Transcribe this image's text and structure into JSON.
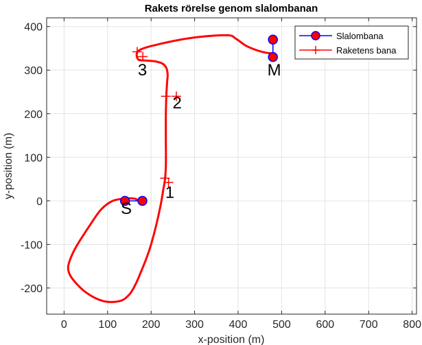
{
  "chart_data": {
    "type": "line",
    "title": "Rakets rörelse genom slalombanan",
    "xlabel": "x-position (m)",
    "ylabel": "y-position (m)",
    "xlim": [
      -40,
      810
    ],
    "ylim": [
      -260,
      420
    ],
    "xticks": [
      0,
      100,
      200,
      300,
      400,
      500,
      600,
      700,
      800
    ],
    "yticks": [
      -200,
      -100,
      0,
      100,
      200,
      300,
      400
    ],
    "grid": true,
    "legend_position": "top-right",
    "colors": {
      "course": "#0000ff",
      "course_marker_fill": "#ff0000",
      "rocket": "#ff0000"
    },
    "series": [
      {
        "name": "Slalombana",
        "style": "line-with-circle-markers",
        "segments": [
          [
            [
              140,
              0
            ],
            [
              180,
              0
            ]
          ],
          [
            [
              480,
              370
            ],
            [
              480,
              330
            ]
          ]
        ]
      },
      {
        "name": "Raketens bana",
        "style": "line",
        "x": [
          176,
          162,
          140,
          112,
          85,
          60,
          28,
          12,
          10,
          20,
          50,
          90,
          128,
          150,
          165,
          178,
          190,
          200,
          212,
          222,
          228,
          232,
          234,
          234,
          234,
          235,
          237,
          238,
          235,
          226,
          210,
          190,
          170,
          172,
          220,
          300,
          375,
          395,
          420,
          455,
          480
        ],
        "y": [
          -2,
          5,
          5,
          0,
          -20,
          -55,
          -105,
          -140,
          -160,
          -180,
          -210,
          -230,
          -230,
          -215,
          -190,
          -160,
          -130,
          -100,
          -55,
          -10,
          25,
          50,
          80,
          140,
          200,
          240,
          275,
          290,
          305,
          315,
          320,
          322,
          325,
          345,
          360,
          375,
          380,
          372,
          355,
          342,
          338
        ]
      }
    ],
    "plus_markers": [
      {
        "x": 232,
        "y": 52
      },
      {
        "x": 240,
        "y": 42
      },
      {
        "x": 234,
        "y": 240
      },
      {
        "x": 258,
        "y": 240
      },
      {
        "x": 168,
        "y": 342
      },
      {
        "x": 181,
        "y": 331
      }
    ],
    "annotations": [
      {
        "text": "S",
        "x": 143,
        "y": -30
      },
      {
        "text": "1",
        "x": 243,
        "y": 7
      },
      {
        "text": "2",
        "x": 260,
        "y": 212
      },
      {
        "text": "3",
        "x": 180,
        "y": 288
      },
      {
        "text": "M",
        "x": 483,
        "y": 288
      }
    ]
  }
}
